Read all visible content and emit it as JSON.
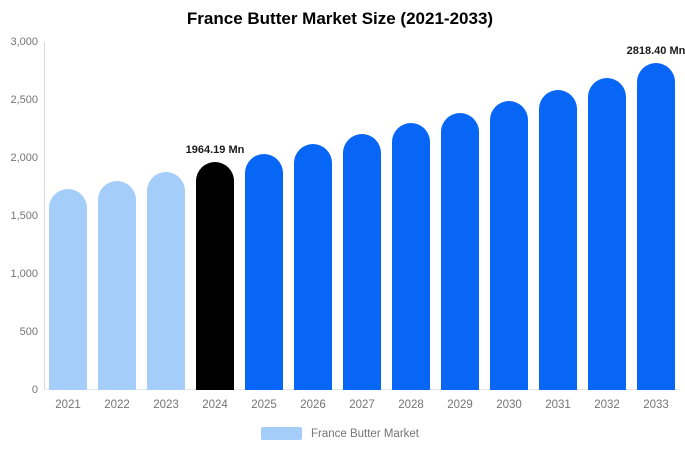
{
  "chart_data": {
    "type": "bar",
    "title": "France Butter Market Size (2021-2033)",
    "series_name": "France Butter Market",
    "unit": "Mn",
    "categories": [
      "2021",
      "2022",
      "2023",
      "2024",
      "2025",
      "2026",
      "2027",
      "2028",
      "2029",
      "2030",
      "2031",
      "2032",
      "2033"
    ],
    "values": [
      1730,
      1805,
      1880,
      1964.19,
      2035,
      2120,
      2210,
      2300,
      2390,
      2490,
      2585,
      2690,
      2818.4
    ],
    "bar_colors": [
      "#a4cdf9",
      "#a4cdf9",
      "#a4cdf9",
      "#000000",
      "#0866f6",
      "#0866f6",
      "#0866f6",
      "#0866f6",
      "#0866f6",
      "#0866f6",
      "#0866f6",
      "#0866f6",
      "#0866f6"
    ],
    "annotations": [
      {
        "category": "2024",
        "label": "1964.19 Mn"
      },
      {
        "category": "2033",
        "label": "2818.40 Mn"
      }
    ],
    "ylim": [
      0,
      3000
    ],
    "ytick_values": [
      0,
      500,
      1000,
      1500,
      2000,
      2500,
      3000
    ],
    "ytick_labels": [
      "0",
      "500",
      "1,000",
      "1,500",
      "2,000",
      "2,500",
      "3,000"
    ],
    "grid": false,
    "legend_position": "bottom"
  },
  "legend": {
    "label": "France Butter Market",
    "swatch_color": "#a4cdf9"
  },
  "colors": {
    "historical_bar": "#a4cdf9",
    "base_year_bar": "#000000",
    "forecast_bar": "#0866f6",
    "axis_line": "#d9d9d9",
    "axis_text": "#757575",
    "annotation_text": "#1a1a1a",
    "background": "#ffffff"
  }
}
